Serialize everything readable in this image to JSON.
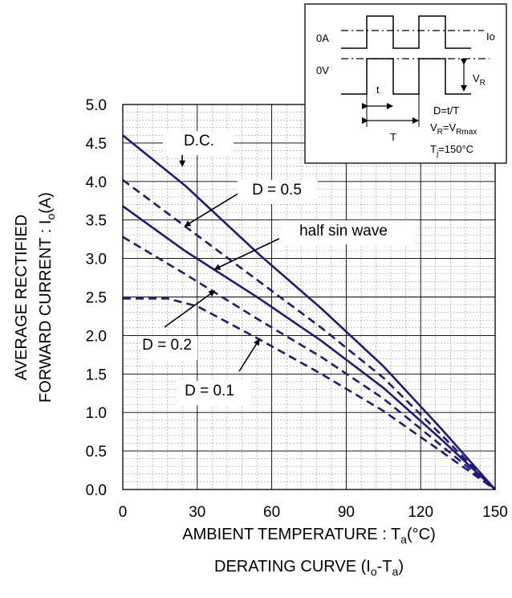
{
  "chart_data": {
    "type": "line",
    "title": "",
    "xlabel": "AMBIENT TEMPERATURE : Ta(°C)",
    "caption": "DERATING CURVE (Io-Ta)",
    "ylabel_line1": "AVERAGE RECTIFIED",
    "ylabel_line2": "FORWARD CURRENT : Io(A)",
    "xlim": [
      0,
      150
    ],
    "ylim": [
      0,
      5
    ],
    "x_ticks": [
      "0",
      "30",
      "60",
      "90",
      "120",
      "150"
    ],
    "x_tick_values": [
      0,
      30,
      60,
      90,
      120,
      150
    ],
    "y_ticks": [
      "0.0",
      "0.5",
      "1.0",
      "1.5",
      "2.0",
      "2.5",
      "3.0",
      "3.5",
      "4.0",
      "4.5",
      "5.0"
    ],
    "y_tick_values": [
      0,
      0.5,
      1.0,
      1.5,
      2.0,
      2.5,
      3.0,
      3.5,
      4.0,
      4.5,
      5.0
    ],
    "grid": true,
    "series": [
      {
        "name": "D.C.",
        "style": "solid",
        "x": [
          0,
          25,
          55,
          80,
          105,
          128,
          150
        ],
        "y": [
          4.6,
          3.95,
          3.05,
          2.35,
          1.6,
          0.8,
          0
        ]
      },
      {
        "name": "D = 0.5",
        "style": "dashed",
        "x": [
          0,
          25,
          55,
          80,
          105,
          128,
          150
        ],
        "y": [
          4.02,
          3.42,
          2.7,
          2.1,
          1.45,
          0.72,
          0
        ]
      },
      {
        "name": "half sin wave",
        "style": "solid",
        "x": [
          0,
          25,
          55,
          80,
          105,
          128,
          150
        ],
        "y": [
          3.68,
          3.1,
          2.48,
          1.93,
          1.32,
          0.66,
          0
        ]
      },
      {
        "name": "D = 0.2",
        "style": "dashed",
        "x": [
          0,
          25,
          55,
          80,
          105,
          128,
          150
        ],
        "y": [
          3.28,
          2.8,
          2.2,
          1.72,
          1.18,
          0.58,
          0
        ]
      },
      {
        "name": "D = 0.1",
        "style": "dashed",
        "x": [
          0,
          18,
          30,
          55,
          80,
          105,
          128,
          150
        ],
        "y": [
          2.48,
          2.48,
          2.38,
          1.95,
          1.5,
          1.02,
          0.5,
          0
        ]
      }
    ],
    "annotations": [
      {
        "label": "D.C.",
        "target_x": 24,
        "target_y": 4.2
      },
      {
        "label": "D = 0.5",
        "target_x": 25,
        "target_y": 3.42
      },
      {
        "label": "half sin wave",
        "target_x": 37,
        "target_y": 2.86
      },
      {
        "label": "D = 0.2",
        "target_x": 37,
        "target_y": 2.58
      },
      {
        "label": "D = 0.1",
        "target_x": 55,
        "target_y": 1.95
      }
    ],
    "line_color": "#1c1c7c",
    "inset": {
      "labels": {
        "zero_a": "0A",
        "zero_v": "0V",
        "io": "Io",
        "vr": "VR",
        "t_small": "t",
        "t_big": "T",
        "duty": "D=t/T",
        "vr_eq": "VR=VRmax",
        "tj": "Tj=150°C"
      }
    }
  }
}
